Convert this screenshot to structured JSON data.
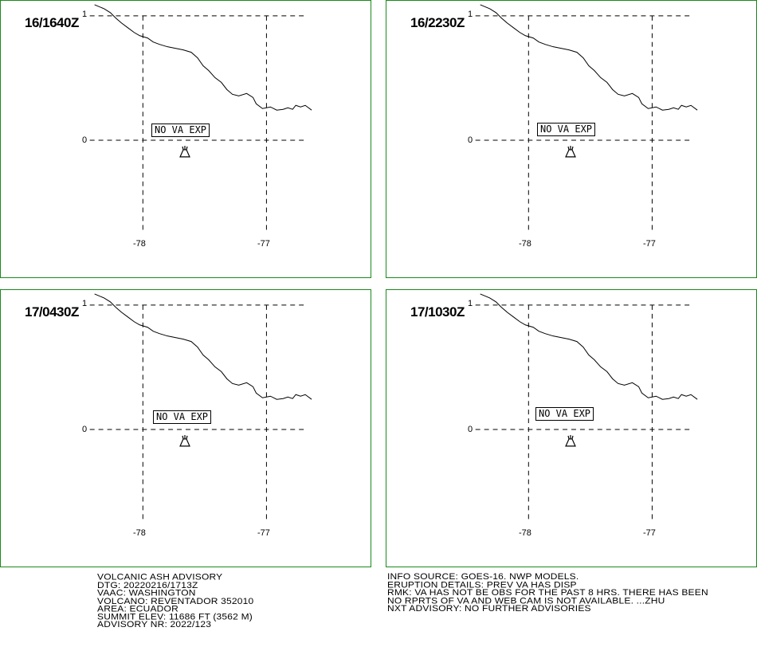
{
  "panels": [
    {
      "time": "16/1640Z",
      "status": "NO VA EXP",
      "lat_labels": [
        "1",
        "0"
      ],
      "lon_labels": [
        "-78",
        "-77"
      ]
    },
    {
      "time": "16/2230Z",
      "status": "NO VA EXP",
      "lat_labels": [
        "1",
        "0"
      ],
      "lon_labels": [
        "-78",
        "-77"
      ]
    },
    {
      "time": "17/0430Z",
      "status": "NO VA EXP",
      "lat_labels": [
        "1",
        "0"
      ],
      "lon_labels": [
        "-78",
        "-77"
      ]
    },
    {
      "time": "17/1030Z",
      "status": "NO VA EXP",
      "lat_labels": [
        "1",
        "0"
      ],
      "lon_labels": [
        "-78",
        "-77"
      ]
    }
  ],
  "advisory": {
    "lines": [
      "VOLCANIC ASH ADVISORY",
      "DTG: 20220216/1713Z",
      "VAAC: WASHINGTON",
      "VOLCANO: REVENTADOR 352010",
      "AREA: ECUADOR",
      "SUMMIT ELEV: 11686 FT (3562 M)",
      "ADVISORY NR: 2022/123"
    ]
  },
  "info": {
    "lines": [
      "INFO SOURCE: GOES-16. NWP MODELS.",
      "ERUPTION DETAILS: PREV VA HAS DISP",
      "RMK: VA HAS NOT BE OBS FOR THE PAST 8 HRS. THERE HAS BEEN",
      "NO RPRTS OF VA AND WEB CAM IS NOT AVAILABLE. ...ZHU",
      "NXT ADVISORY: NO FURTHER ADVISORIES"
    ]
  },
  "icons": {
    "volcano": "volcano-icon"
  },
  "colors": {
    "panel_border": "#1a8a1a"
  }
}
